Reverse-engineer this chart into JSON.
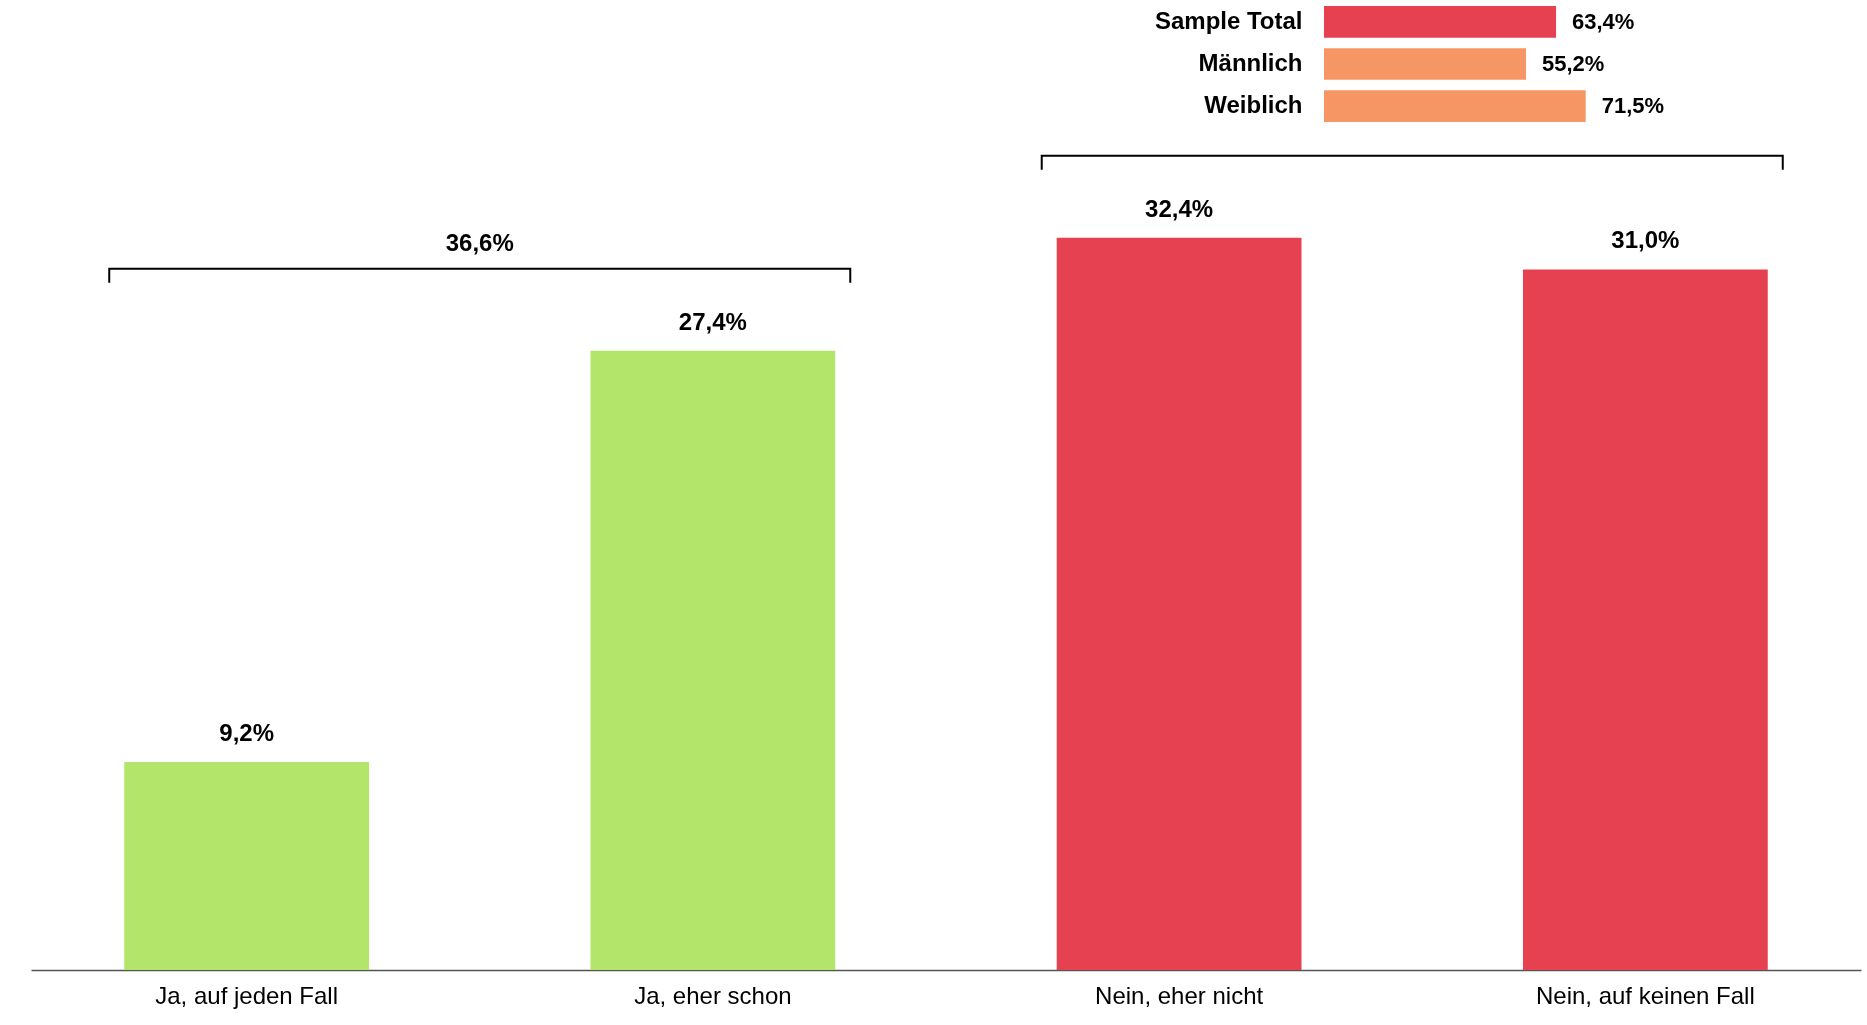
{
  "chart_data": [
    {
      "type": "bar",
      "categories": [
        "Ja, auf jeden Fall",
        "Ja, eher schon",
        "Nein, eher nicht",
        "Nein, auf keinen Fall"
      ],
      "values": [
        9.2,
        27.4,
        32.4,
        31.0
      ],
      "colors": [
        "#b2e56a",
        "#b2e56a",
        "#e64150",
        "#e64150"
      ],
      "value_labels": [
        "9,2%",
        "27,4%",
        "32,4%",
        "31,0%"
      ],
      "annotations": [
        "36,6%"
      ]
    },
    {
      "type": "bar",
      "orientation": "horizontal",
      "categories": [
        "Sample Total",
        "Männlich",
        "Weiblich"
      ],
      "values": [
        63.4,
        55.2,
        71.5
      ],
      "colors": [
        "#e64150",
        "#f79665",
        "#f79665"
      ],
      "value_labels": [
        "63,4%",
        "55,2%",
        "71,5%"
      ]
    }
  ]
}
